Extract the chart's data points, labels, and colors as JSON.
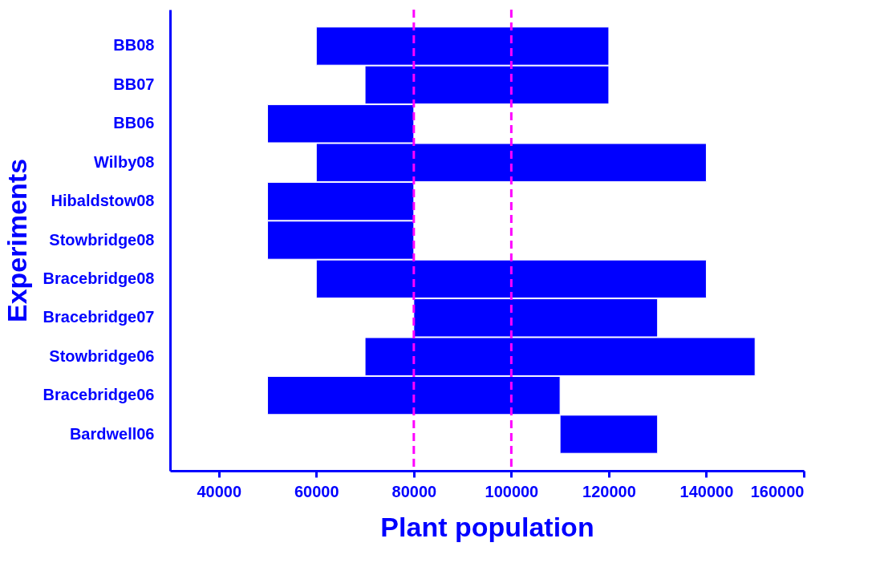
{
  "chart_data": {
    "type": "bar",
    "orientation": "horizontal",
    "xlabel": "Plant population",
    "ylabel": "Experiments",
    "categories": [
      "BB08",
      "BB07",
      "BB06",
      "Wilby08",
      "Hibaldstow08",
      "Stowbridge08",
      "Bracebridge08",
      "Bracebridge07",
      "Stowbridge06",
      "Bracebridge06",
      "Bardwell06"
    ],
    "base": [
      60000,
      70000,
      50000,
      60000,
      50000,
      50000,
      60000,
      80000,
      70000,
      50000,
      110000
    ],
    "values": [
      60000,
      50000,
      30000,
      80000,
      30000,
      30000,
      80000,
      50000,
      80000,
      60000,
      20000
    ],
    "color": "#0000ff",
    "xlim": [
      30000,
      160000
    ],
    "xticks": [
      40000,
      60000,
      80000,
      100000,
      120000,
      140000,
      160000
    ],
    "grid": false,
    "ref_lines": [
      {
        "axis": "x",
        "value": 80000,
        "color": "#ff00ff",
        "line_style": "dashed"
      },
      {
        "axis": "x",
        "value": 100000,
        "color": "#ff00ff",
        "line_style": "dashed"
      }
    ]
  }
}
